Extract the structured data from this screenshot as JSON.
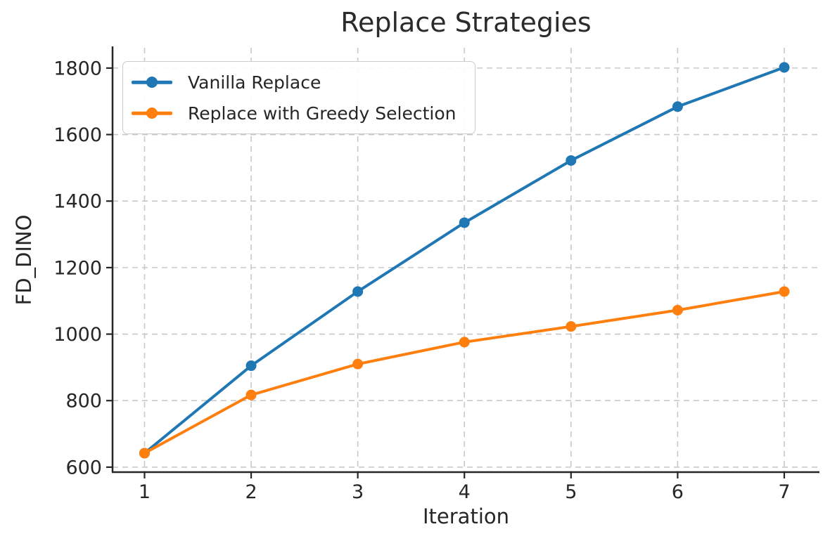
{
  "chart_data": {
    "type": "line",
    "title": "Replace Strategies",
    "xlabel": "Iteration",
    "ylabel": "FD_DINO",
    "x": [
      1,
      2,
      3,
      4,
      5,
      6,
      7
    ],
    "series": [
      {
        "name": "Vanilla Replace",
        "color": "#1f77b4",
        "values": [
          642,
          905,
          1128,
          1335,
          1522,
          1684,
          1802
        ]
      },
      {
        "name": "Replace with Greedy Selection",
        "color": "#ff7f0e",
        "values": [
          642,
          817,
          910,
          976,
          1023,
          1072,
          1128
        ]
      }
    ],
    "xticks": [
      1,
      2,
      3,
      4,
      5,
      6,
      7
    ],
    "yticks": [
      600,
      800,
      1000,
      1200,
      1400,
      1600,
      1800
    ],
    "xlim": [
      0.7,
      7.33
    ],
    "ylim": [
      585,
      1861
    ],
    "grid": true,
    "grid_style": "dashed",
    "legend_position": "upper left",
    "marker": "circle",
    "colors": {
      "text": "#262626",
      "grid": "#c9c9c9",
      "spine": "#262626",
      "background": "#ffffff"
    }
  }
}
